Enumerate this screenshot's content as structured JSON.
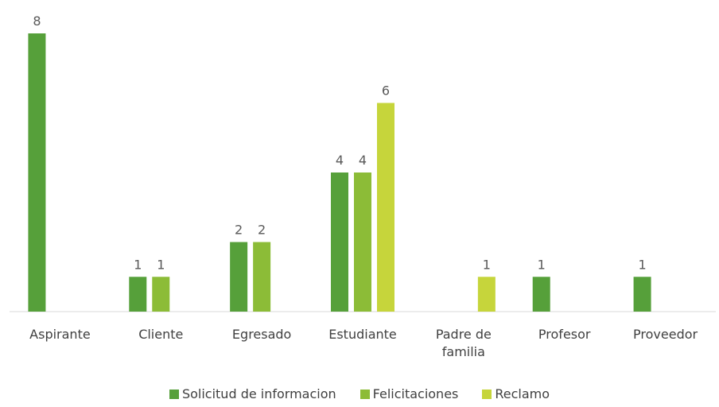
{
  "chart_data": {
    "type": "bar",
    "categories": [
      "Aspirante",
      "Cliente",
      "Egresado",
      "Estudiante",
      "Padre de familia",
      "Profesor",
      "Proveedor"
    ],
    "series": [
      {
        "name": "Solicitud de informacion",
        "color": "#56a03a",
        "values": [
          8,
          1,
          2,
          4,
          null,
          1,
          1
        ]
      },
      {
        "name": "Felicitaciones",
        "color": "#8cbc37",
        "values": [
          null,
          1,
          2,
          4,
          null,
          null,
          null
        ]
      },
      {
        "name": "Reclamo",
        "color": "#c6d53b",
        "values": [
          null,
          null,
          null,
          6,
          1,
          null,
          null
        ]
      }
    ],
    "ylim": [
      0,
      8
    ],
    "legend": "bottom"
  }
}
